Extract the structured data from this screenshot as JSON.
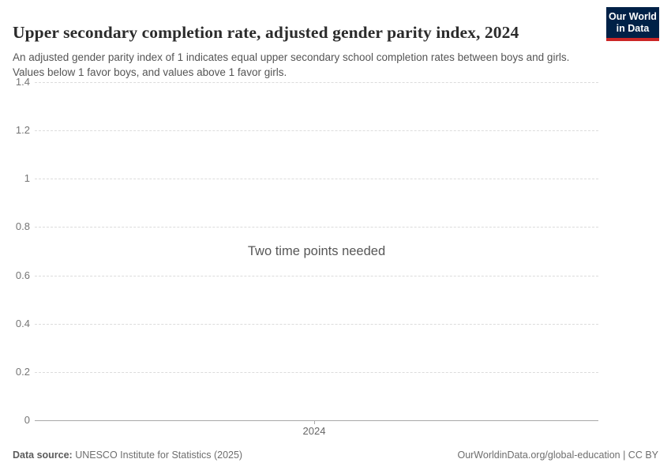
{
  "header": {
    "title": "Upper secondary completion rate, adjusted gender parity index, 2024",
    "subtitle": "An adjusted gender parity index of 1 indicates equal upper secondary school completion rates between boys and girls. Values below 1 favor boys, and values above 1 favor girls.",
    "logo": {
      "line1": "Our World",
      "line2": "in Data",
      "background_color": "#002147",
      "accent_color": "#cb2626"
    }
  },
  "chart_data": {
    "type": "line",
    "title": "Upper secondary completion rate, adjusted gender parity index, 2024",
    "series": [],
    "x": [],
    "empty_message": "Two time points needed",
    "x_ticks": [
      "2024"
    ],
    "y_ticks": [
      "1.4",
      "1.2",
      "1",
      "0.8",
      "0.6",
      "0.4",
      "0.2",
      "0"
    ],
    "ylim": [
      0,
      1.4
    ],
    "grid": "horizontal-dashed",
    "legend": "none"
  },
  "footer": {
    "data_source_label": "Data source:",
    "data_source_value": " UNESCO Institute for Statistics (2025)",
    "right_text": "OurWorldinData.org/global-education | CC BY"
  },
  "colors": {
    "gridline": "#dcdcdc",
    "axis": "#a9a9a9",
    "tick_label": "#757575",
    "title_text": "#2b2b2b",
    "subtitle_text": "#555555",
    "footer_text": "#6e6e6e"
  }
}
